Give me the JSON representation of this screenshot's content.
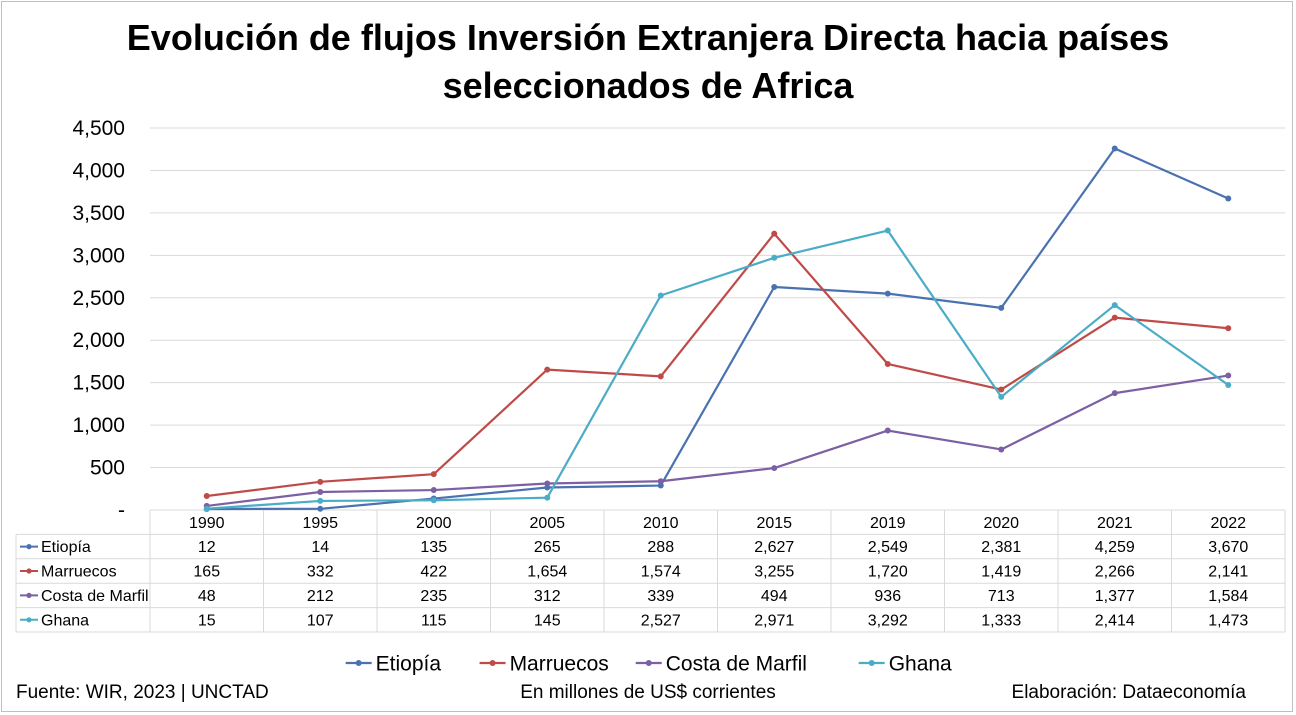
{
  "chart_data": {
    "type": "line",
    "title_line1": "Evolución de flujos Inversión Extranjera Directa hacia países",
    "title_line2": "seleccionados de Africa",
    "categories": [
      "1990",
      "1995",
      "2000",
      "2005",
      "2010",
      "2015",
      "2019",
      "2020",
      "2021",
      "2022"
    ],
    "y_ticks": [
      "-",
      "500",
      "1,000",
      "1,500",
      "2,000",
      "2,500",
      "3,000",
      "3,500",
      "4,000",
      "4,500"
    ],
    "ylim": [
      0,
      4500
    ],
    "grid": true,
    "legend_position": "bottom",
    "series": [
      {
        "name": "Etiopía",
        "color": "#4a72b0",
        "values": [
          12,
          14,
          135,
          265,
          288,
          2627,
          2549,
          2381,
          4259,
          3670
        ],
        "labels": [
          "12",
          "14",
          "135",
          "265",
          "288",
          "2,627",
          "2,549",
          "2,381",
          "4,259",
          "3,670"
        ]
      },
      {
        "name": "Marruecos",
        "color": "#bf4b48",
        "values": [
          165,
          332,
          422,
          1654,
          1574,
          3255,
          1720,
          1419,
          2266,
          2141
        ],
        "labels": [
          "165",
          "332",
          "422",
          "1,654",
          "1,574",
          "3,255",
          "1,720",
          "1,419",
          "2,266",
          "2,141"
        ]
      },
      {
        "name": "Costa de Marfil",
        "color": "#7d5fa3",
        "values": [
          48,
          212,
          235,
          312,
          339,
          494,
          936,
          713,
          1377,
          1584
        ],
        "labels": [
          "48",
          "212",
          "235",
          "312",
          "339",
          "494",
          "936",
          "713",
          "1,377",
          "1,584"
        ]
      },
      {
        "name": "Ghana",
        "color": "#4bacc6",
        "values": [
          15,
          107,
          115,
          145,
          2527,
          2971,
          3292,
          1333,
          2414,
          1473
        ],
        "labels": [
          "15",
          "107",
          "115",
          "145",
          "2,527",
          "2,971",
          "3,292",
          "1,333",
          "2,414",
          "1,473"
        ]
      }
    ]
  },
  "footer": {
    "source": "Fuente: WIR, 2023 | UNCTAD",
    "units": "En millones de US$ corrientes",
    "credit": "Elaboración: Dataeconomía"
  }
}
